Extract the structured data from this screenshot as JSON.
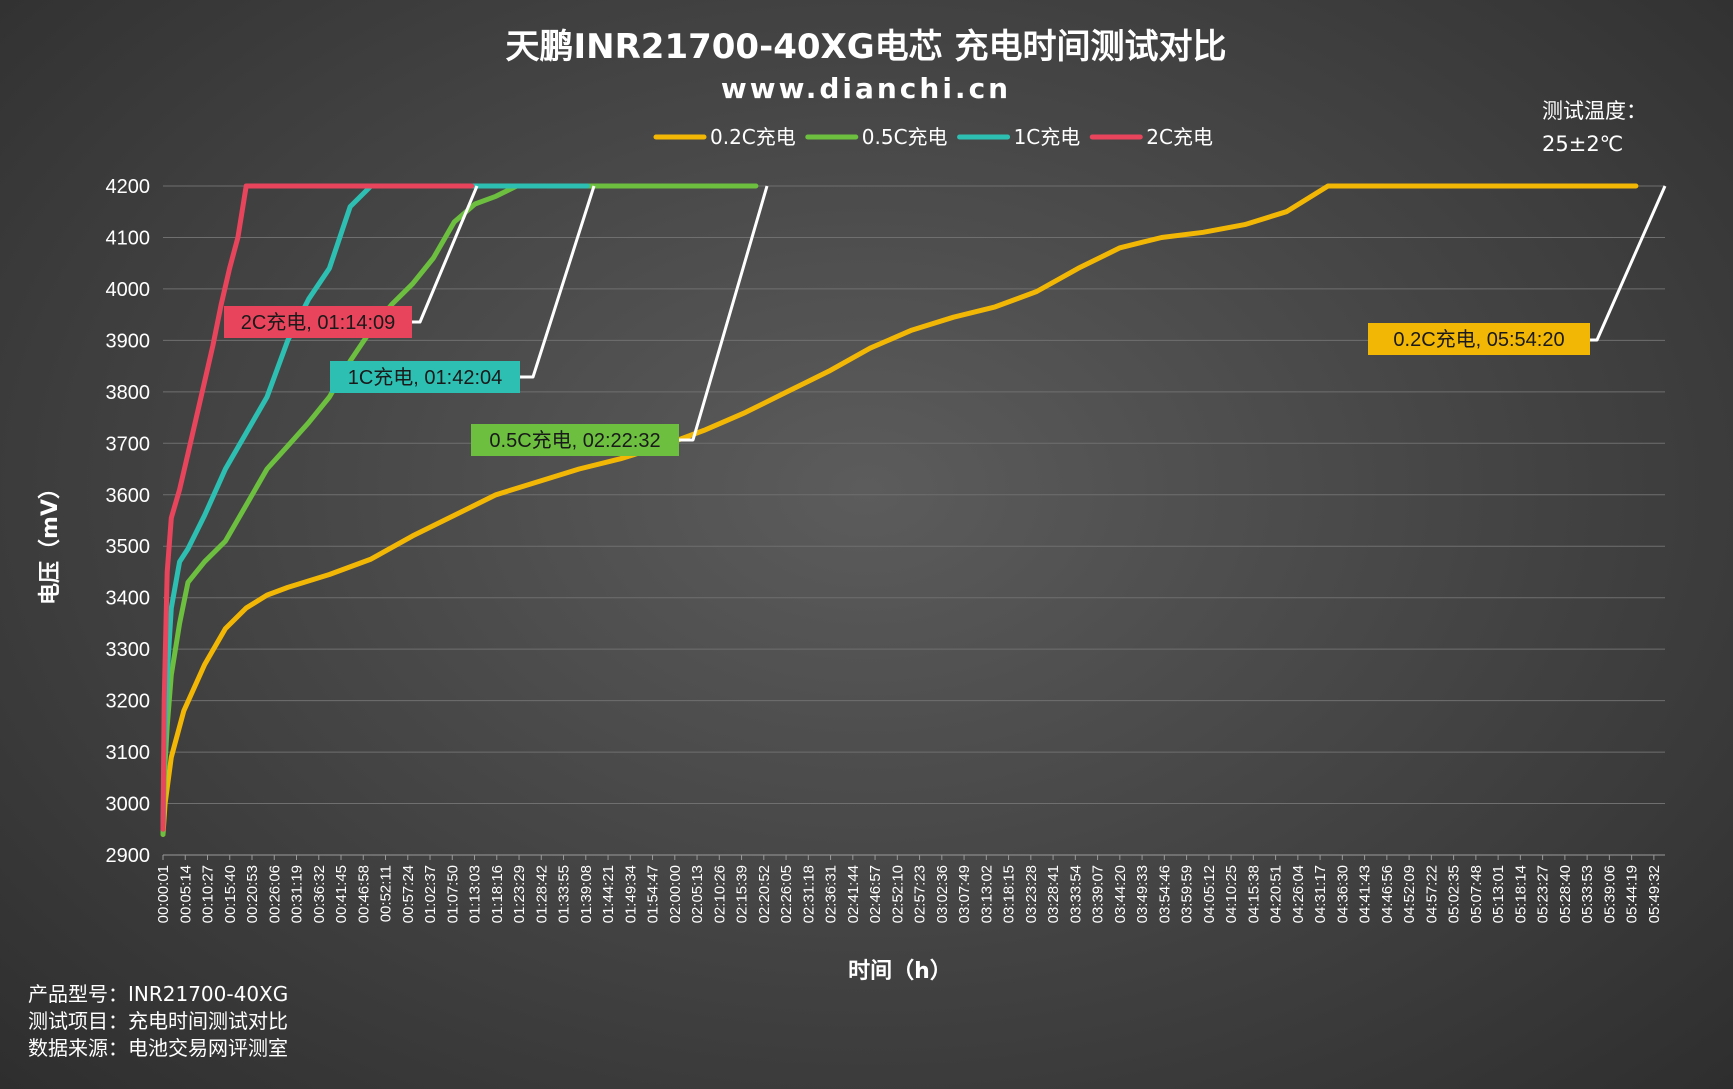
{
  "title": "天鹏INR21700-40XG电芯 充电时间测试对比",
  "subtitle": "www.dianchi.cn",
  "temperature": {
    "label": "测试温度：",
    "value": "25±2℃"
  },
  "footer": {
    "model": "产品型号：INR21700-40XG",
    "item": "测试项目：充电时间测试对比",
    "source": "数据来源：电池交易网评测室"
  },
  "colors": {
    "0.2C": "#f2b705",
    "0.5C": "#6cbf3f",
    "1C": "#2ebfb3",
    "2C": "#e8455c"
  },
  "chart_data": {
    "type": "line",
    "xlabel": "时间（h）",
    "ylabel": "电压（mV）",
    "ylim": [
      2900,
      4200
    ],
    "yticks": [
      2900,
      3000,
      3100,
      3200,
      3300,
      3400,
      3500,
      3600,
      3700,
      3800,
      3900,
      4000,
      4100,
      4200
    ],
    "xlim_min": [
      0,
      361
    ],
    "x_tick_labels": [
      "00:00:01",
      "00:05:14",
      "00:10:27",
      "00:15:40",
      "00:20:53",
      "00:26:06",
      "00:31:19",
      "00:36:32",
      "00:41:45",
      "00:46:58",
      "00:52:11",
      "00:57:24",
      "01:02:37",
      "01:07:50",
      "01:13:03",
      "01:18:16",
      "01:23:29",
      "01:28:42",
      "01:33:55",
      "01:39:08",
      "01:44:21",
      "01:49:34",
      "01:54:47",
      "02:00:00",
      "02:05:13",
      "02:10:26",
      "02:15:39",
      "02:20:52",
      "02:26:05",
      "02:31:18",
      "02:36:31",
      "02:41:44",
      "02:46:57",
      "02:52:10",
      "02:57:23",
      "03:02:36",
      "03:07:49",
      "03:13:02",
      "03:18:15",
      "03:23:28",
      "03:28:41",
      "03:33:54",
      "03:39:07",
      "03:44:20",
      "03:49:33",
      "03:54:46",
      "03:59:59",
      "04:05:12",
      "04:10:25",
      "04:15:38",
      "04:20:51",
      "04:26:04",
      "04:31:17",
      "04:36:30",
      "04:41:43",
      "04:46:56",
      "04:52:09",
      "04:57:22",
      "05:02:35",
      "05:07:48",
      "05:13:01",
      "05:18:14",
      "05:23:27",
      "05:28:40",
      "05:33:53",
      "05:39:06",
      "05:44:19",
      "05:49:32"
    ],
    "legend_position": "top-center",
    "grid": true,
    "series": [
      {
        "name": "0.2C充电",
        "color": "#f2b705",
        "x_min": [
          0,
          0.5,
          2,
          5,
          10,
          15,
          20,
          25,
          30,
          40,
          50,
          60,
          70,
          80,
          90,
          100,
          110,
          120,
          130,
          140,
          150,
          160,
          170,
          180,
          190,
          200,
          210,
          220,
          230,
          240,
          250,
          260,
          270,
          280,
          290,
          300,
          310,
          315,
          320,
          354
        ],
        "y_mv": [
          2940,
          3000,
          3090,
          3180,
          3270,
          3340,
          3380,
          3405,
          3420,
          3445,
          3475,
          3520,
          3560,
          3600,
          3625,
          3650,
          3670,
          3695,
          3725,
          3760,
          3800,
          3840,
          3885,
          3920,
          3945,
          3965,
          3995,
          4040,
          4080,
          4100,
          4110,
          4125,
          4150,
          4200,
          4200,
          4200,
          4200,
          4200,
          4200,
          4200
        ],
        "annotation": "0.2C充电, 05:54:20"
      },
      {
        "name": "0.5C充电",
        "color": "#6cbf3f",
        "x_min": [
          0,
          0.3,
          1,
          2,
          4,
          6,
          10,
          15,
          20,
          25,
          30,
          35,
          40,
          45,
          50,
          55,
          60,
          65,
          70,
          75,
          80,
          85,
          90,
          95,
          97,
          142.5
        ],
        "y_mv": [
          2940,
          3050,
          3150,
          3250,
          3350,
          3430,
          3470,
          3510,
          3580,
          3650,
          3695,
          3740,
          3790,
          3860,
          3920,
          3970,
          4010,
          4060,
          4130,
          4165,
          4180,
          4200,
          4200,
          4200,
          4200,
          4200
        ],
        "annotation": "0.5C充电, 02:22:32"
      },
      {
        "name": "1C充电",
        "color": "#2ebfb3",
        "x_min": [
          0,
          0.3,
          1,
          2,
          4,
          6,
          10,
          15,
          20,
          25,
          30,
          35,
          40,
          45,
          50,
          52,
          55,
          60,
          102
        ],
        "y_mv": [
          2950,
          3100,
          3250,
          3380,
          3470,
          3495,
          3560,
          3650,
          3720,
          3790,
          3900,
          3980,
          4040,
          4160,
          4200,
          4200,
          4200,
          4200,
          4200
        ],
        "annotation": "1C充电, 01:42:04"
      },
      {
        "name": "2C充电",
        "color": "#e8455c",
        "x_min": [
          0,
          0.3,
          1,
          2,
          4,
          6,
          8,
          10,
          12,
          14,
          16,
          18,
          20,
          22,
          24,
          74.2
        ],
        "y_mv": [
          2950,
          3200,
          3450,
          3555,
          3610,
          3680,
          3750,
          3820,
          3890,
          3970,
          4040,
          4100,
          4200,
          4200,
          4200,
          4200
        ],
        "annotation": "2C充电, 01:14:09"
      }
    ]
  }
}
